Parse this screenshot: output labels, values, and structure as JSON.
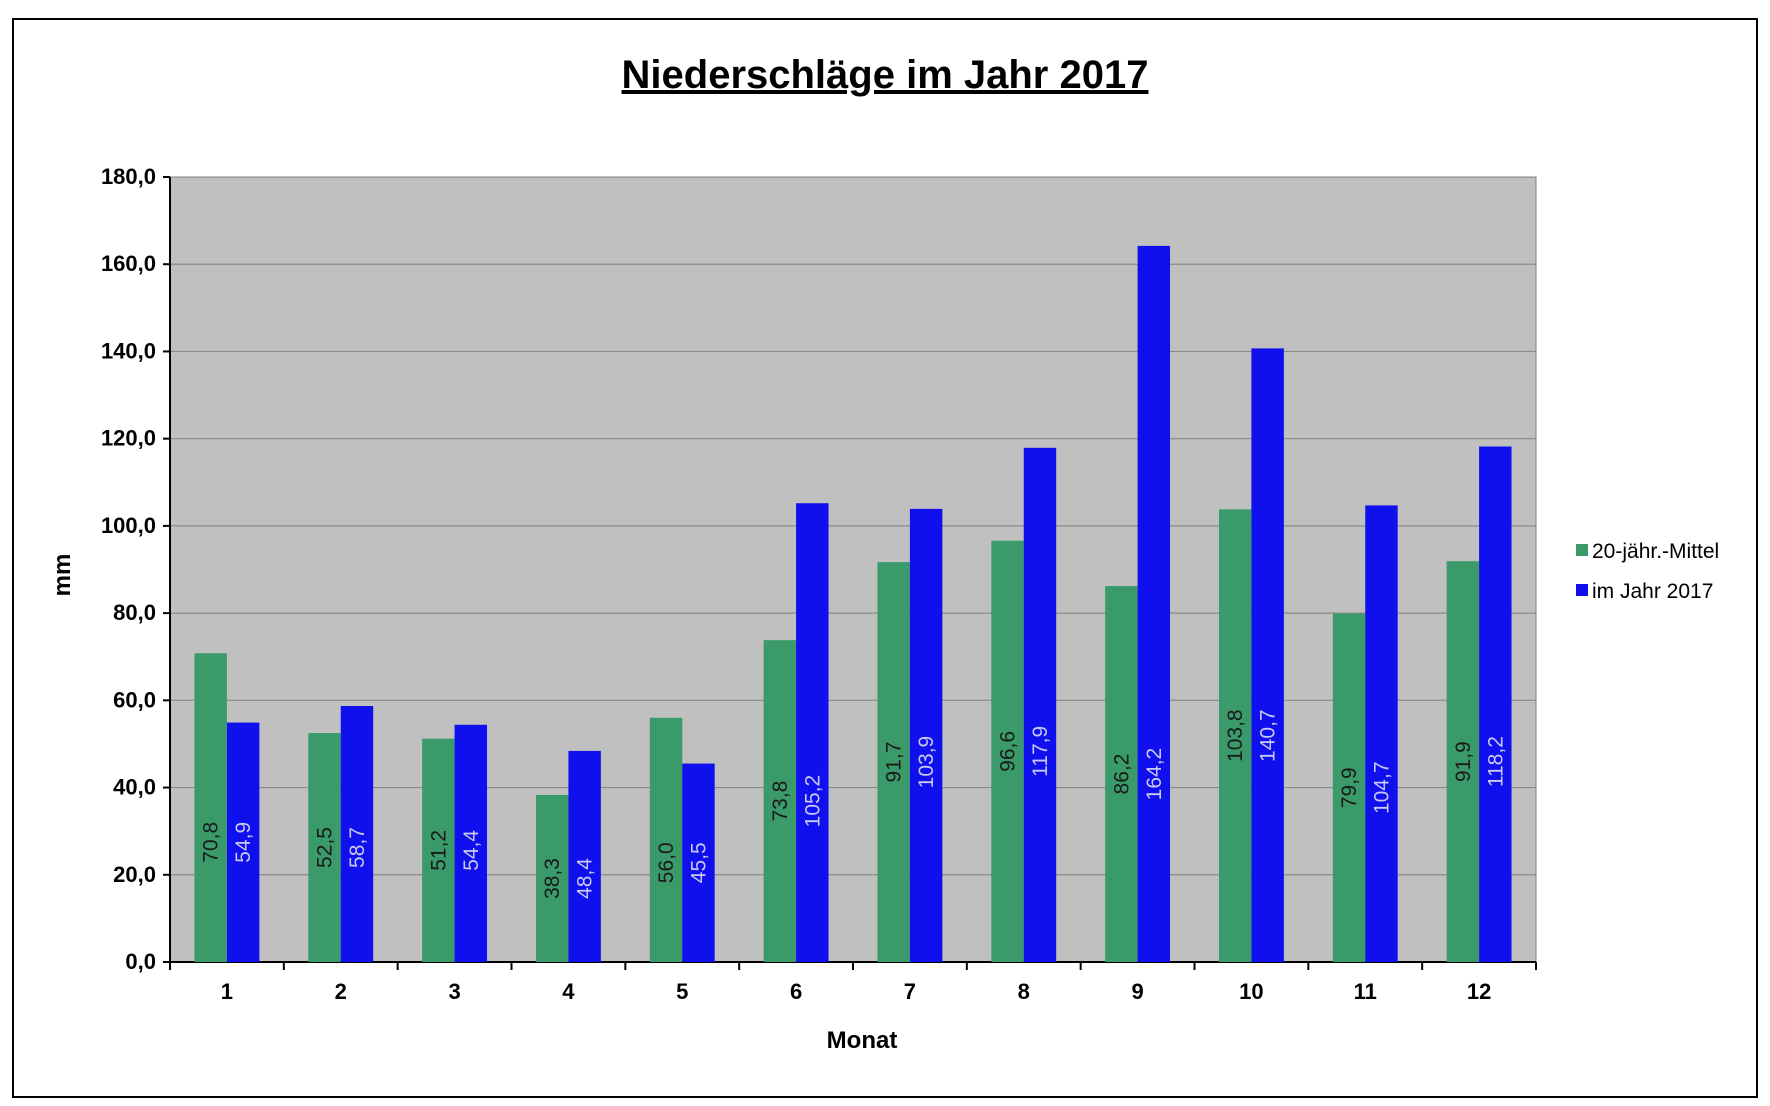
{
  "chart_data": {
    "type": "bar",
    "title": "Niederschläge im Jahr  2017",
    "xlabel": "Monat",
    "ylabel": "mm",
    "ylim": [
      0,
      180
    ],
    "ytick_step": 20,
    "ytick_labels": [
      "0,0",
      "20,0",
      "40,0",
      "60,0",
      "80,0",
      "100,0",
      "120,0",
      "140,0",
      "160,0",
      "180,0"
    ],
    "categories": [
      "1",
      "2",
      "3",
      "4",
      "5",
      "6",
      "7",
      "8",
      "9",
      "10",
      "11",
      "12"
    ],
    "grid": true,
    "legend_position": "right",
    "plot_background": "#c0c0c0",
    "series": [
      {
        "name": "20-jähr.-Mittel",
        "color": "#3a9a6a",
        "label_color": "#1a1a1a",
        "values": [
          70.8,
          52.5,
          51.2,
          38.3,
          56.0,
          73.8,
          91.7,
          96.6,
          86.2,
          103.8,
          79.9,
          91.9
        ],
        "labels": [
          "70,8",
          "52,5",
          "51,2",
          "38,3",
          "56,0",
          "73,8",
          "91,7",
          "96,6",
          "86,2",
          "103,8",
          "79,9",
          "91,9"
        ]
      },
      {
        "name": "im Jahr 2017",
        "color": "#1010ee",
        "label_color": "#c8c8f0",
        "values": [
          54.9,
          58.7,
          54.4,
          48.4,
          45.5,
          105.2,
          103.9,
          117.9,
          164.2,
          140.7,
          104.7,
          118.2
        ],
        "labels": [
          "54,9",
          "58,7",
          "54,4",
          "48,4",
          "45,5",
          "105,2",
          "103,9",
          "117,9",
          "164,2",
          "140,7",
          "104,7",
          "118,2"
        ]
      }
    ]
  }
}
